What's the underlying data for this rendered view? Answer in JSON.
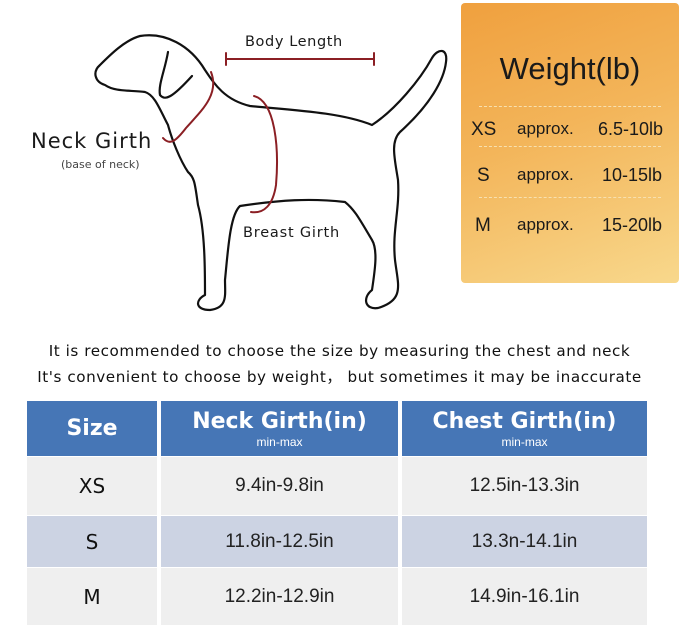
{
  "diagram": {
    "body_length_label": "Body Length",
    "neck_girth_label": "Neck Girth",
    "neck_girth_sublabel": "(base of neck)",
    "breast_girth_label": "Breast Girth",
    "measure_line_color": "#8b1f24"
  },
  "weight_panel": {
    "title": "Weight(lb)",
    "rows": [
      {
        "size": "XS",
        "approx": "approx.",
        "range": "6.5-10lb"
      },
      {
        "size": "S",
        "approx": "approx.",
        "range": "10-15lb"
      },
      {
        "size": "M",
        "approx": "approx.",
        "range": "15-20lb"
      }
    ]
  },
  "notes": [
    "It is recommended to choose the size by measuring the chest and neck",
    "It's convenient to choose by weight， but sometimes it may be inaccurate"
  ],
  "size_table": {
    "headers": [
      {
        "title": "Size",
        "sub": ""
      },
      {
        "title": "Neck Girth(in)",
        "sub": "min-max"
      },
      {
        "title": "Chest Girth(in)",
        "sub": "min-max"
      }
    ],
    "rows": [
      {
        "size": "XS",
        "neck": "9.4in-9.8in",
        "chest": "12.5in-13.3in"
      },
      {
        "size": "S",
        "neck": "11.8in-12.5in",
        "chest": "13.3n-14.1in"
      },
      {
        "size": "M",
        "neck": "12.2in-12.9in",
        "chest": "14.9in-16.1in"
      }
    ],
    "header_color": "#4676b6",
    "row_colors": [
      "#efefef",
      "#ccd3e3",
      "#efefef"
    ]
  }
}
